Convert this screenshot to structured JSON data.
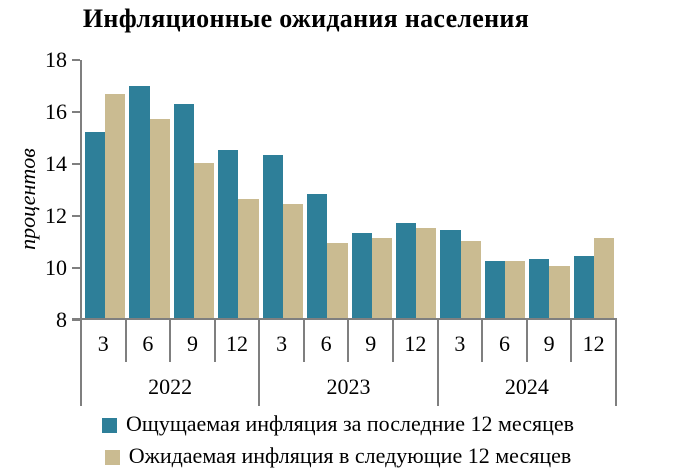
{
  "chart_data": {
    "type": "bar",
    "title": "Инфляционные ожидания населения",
    "ylabel": "процентов",
    "xlabel": "",
    "ylim": [
      8,
      18
    ],
    "yticks": [
      8,
      10,
      12,
      14,
      16,
      18
    ],
    "grid": false,
    "legend_position": "bottom",
    "axis_color": "#7F7F7F",
    "background_color": "#FFFFFF",
    "years": [
      {
        "label": "2022"
      },
      {
        "label": "2023"
      },
      {
        "label": "2024"
      }
    ],
    "month_labels": [
      "3",
      "6",
      "9",
      "12",
      "3",
      "6",
      "9",
      "12",
      "3",
      "6",
      "9",
      "12"
    ],
    "categories": [
      "2022-3",
      "2022-6",
      "2022-9",
      "2022-12",
      "2023-3",
      "2023-6",
      "2023-9",
      "2023-12",
      "2024-3",
      "2024-6",
      "2024-9",
      "2024-12"
    ],
    "series": [
      {
        "key": "perceived",
        "name": "Ощущаемая инфляция за последние 12 месяцев",
        "color": "#2E7F99",
        "values": [
          15.2,
          17.0,
          16.3,
          14.5,
          14.3,
          12.8,
          11.3,
          11.7,
          11.4,
          10.2,
          10.3,
          10.4
        ]
      },
      {
        "key": "expected",
        "name": "Ожидаемая инфляция в следующие 12 месяцев",
        "color": "#CABB91",
        "values": [
          16.7,
          15.7,
          14.0,
          12.6,
          12.4,
          10.9,
          11.1,
          11.5,
          11.0,
          10.2,
          10.0,
          11.1
        ]
      }
    ]
  }
}
